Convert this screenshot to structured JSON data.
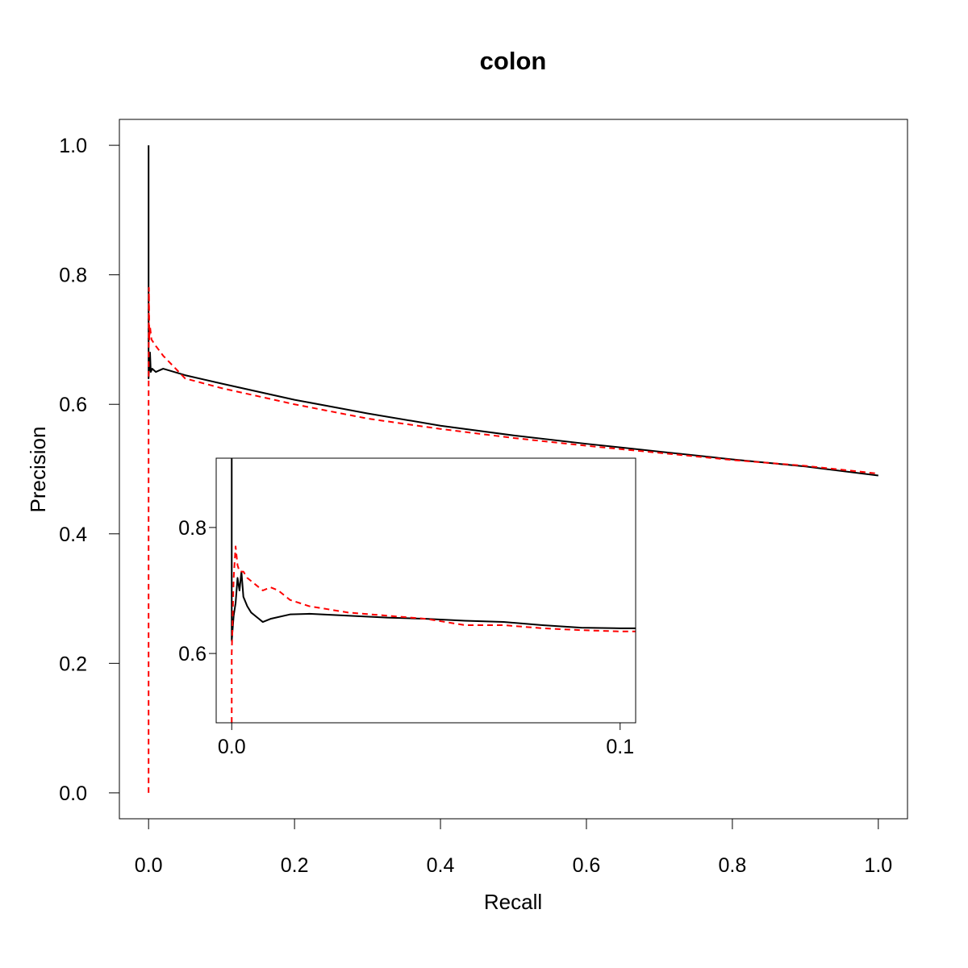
{
  "chart_data": [
    {
      "type": "line",
      "title": "colon",
      "xlabel": "Recall",
      "ylabel": "Precision",
      "xlim": [
        -0.04,
        1.04
      ],
      "ylim": [
        -0.04,
        1.04
      ],
      "x_ticks": [
        "0.0",
        "0.2",
        "0.4",
        "0.6",
        "0.8",
        "1.0"
      ],
      "y_ticks": [
        "0.0",
        "0.2",
        "0.4",
        "0.6",
        "0.8",
        "1.0"
      ],
      "grid": false,
      "series": [
        {
          "color": "#000000",
          "line_style": "solid",
          "points": [
            [
              0,
              1.0
            ],
            [
              0,
              0.64
            ],
            [
              0.001,
              0.66
            ],
            [
              0.002,
              0.68
            ],
            [
              0.003,
              0.65
            ],
            [
              0.005,
              0.655
            ],
            [
              0.01,
              0.65
            ],
            [
              0.02,
              0.655
            ],
            [
              0.05,
              0.645
            ],
            [
              0.1,
              0.632
            ],
            [
              0.2,
              0.607
            ],
            [
              0.3,
              0.586
            ],
            [
              0.4,
              0.567
            ],
            [
              0.5,
              0.552
            ],
            [
              0.6,
              0.539
            ],
            [
              0.7,
              0.527
            ],
            [
              0.8,
              0.515
            ],
            [
              0.9,
              0.504
            ],
            [
              1.0,
              0.49
            ]
          ]
        },
        {
          "color": "#ff0000",
          "line_style": "dashed",
          "points": [
            [
              0,
              0.0
            ],
            [
              0,
              0.6
            ],
            [
              0.0005,
              0.78
            ],
            [
              0.001,
              0.7
            ],
            [
              0.002,
              0.72
            ],
            [
              0.004,
              0.7
            ],
            [
              0.01,
              0.69
            ],
            [
              0.02,
              0.675
            ],
            [
              0.05,
              0.64
            ],
            [
              0.1,
              0.625
            ],
            [
              0.2,
              0.6
            ],
            [
              0.3,
              0.578
            ],
            [
              0.4,
              0.562
            ],
            [
              0.5,
              0.548
            ],
            [
              0.6,
              0.536
            ],
            [
              0.7,
              0.525
            ],
            [
              0.8,
              0.514
            ],
            [
              0.9,
              0.505
            ],
            [
              1.0,
              0.493
            ]
          ]
        }
      ]
    },
    {
      "type": "line",
      "title": "",
      "xlim": [
        -0.004,
        0.104
      ],
      "ylim": [
        0.49,
        0.91
      ],
      "x_ticks": [
        "0.0",
        "0.1"
      ],
      "y_ticks": [
        "0.6",
        "0.8"
      ],
      "grid": false,
      "series": [
        {
          "color": "#000000",
          "line_style": "solid",
          "points": [
            [
              0,
              0.91
            ],
            [
              0,
              0.62
            ],
            [
              0.0005,
              0.66
            ],
            [
              0.001,
              0.68
            ],
            [
              0.0015,
              0.72
            ],
            [
              0.002,
              0.7
            ],
            [
              0.0025,
              0.73
            ],
            [
              0.003,
              0.69
            ],
            [
              0.004,
              0.675
            ],
            [
              0.005,
              0.665
            ],
            [
              0.006,
              0.66
            ],
            [
              0.007,
              0.655
            ],
            [
              0.008,
              0.65
            ],
            [
              0.01,
              0.655
            ],
            [
              0.015,
              0.662
            ],
            [
              0.02,
              0.663
            ],
            [
              0.03,
              0.66
            ],
            [
              0.04,
              0.657
            ],
            [
              0.05,
              0.655
            ],
            [
              0.06,
              0.652
            ],
            [
              0.07,
              0.65
            ],
            [
              0.08,
              0.645
            ],
            [
              0.09,
              0.641
            ],
            [
              0.1,
              0.64
            ],
            [
              0.104,
              0.64
            ]
          ]
        },
        {
          "color": "#ff0000",
          "line_style": "dashed",
          "points": [
            [
              0,
              0.49
            ],
            [
              0,
              0.6
            ],
            [
              0.0005,
              0.72
            ],
            [
              0.001,
              0.77
            ],
            [
              0.0015,
              0.74
            ],
            [
              0.002,
              0.73
            ],
            [
              0.003,
              0.73
            ],
            [
              0.004,
              0.72
            ],
            [
              0.006,
              0.71
            ],
            [
              0.008,
              0.7
            ],
            [
              0.01,
              0.705
            ],
            [
              0.012,
              0.7
            ],
            [
              0.015,
              0.685
            ],
            [
              0.02,
              0.675
            ],
            [
              0.025,
              0.67
            ],
            [
              0.03,
              0.665
            ],
            [
              0.04,
              0.66
            ],
            [
              0.05,
              0.655
            ],
            [
              0.06,
              0.645
            ],
            [
              0.07,
              0.645
            ],
            [
              0.08,
              0.64
            ],
            [
              0.09,
              0.637
            ],
            [
              0.1,
              0.635
            ],
            [
              0.104,
              0.635
            ]
          ]
        }
      ]
    }
  ]
}
